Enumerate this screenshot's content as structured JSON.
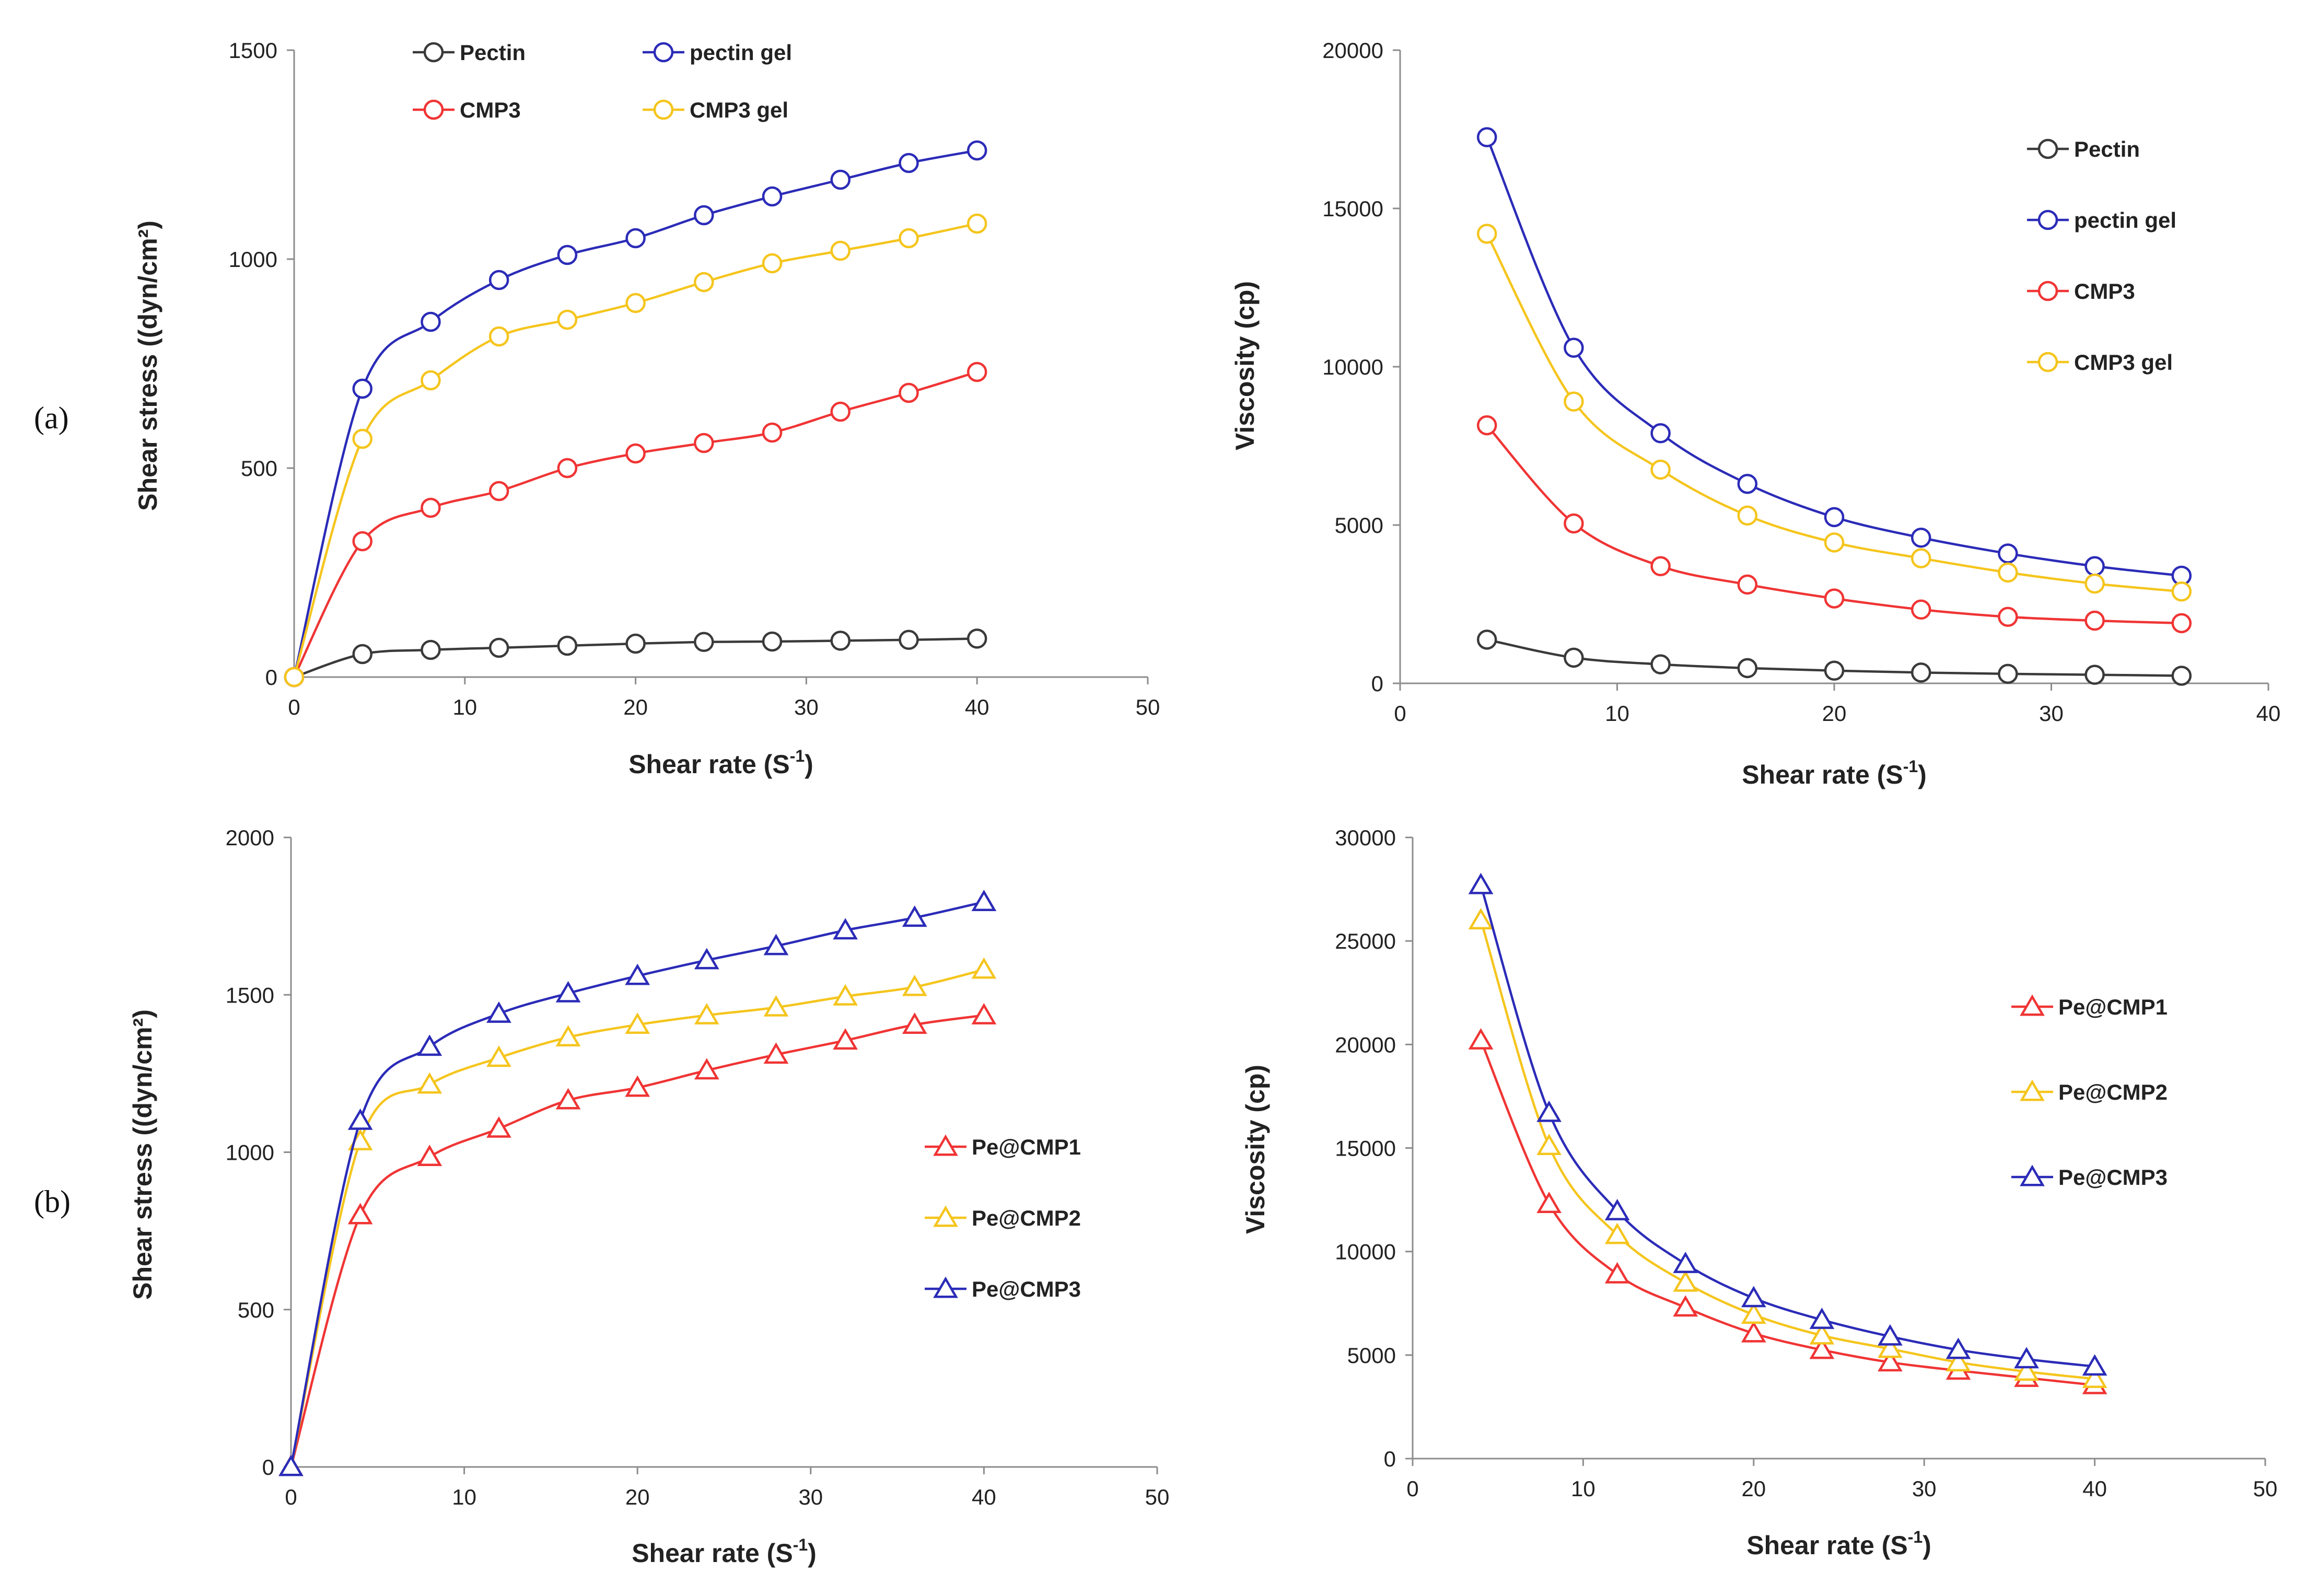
{
  "panel_labels": [
    "(a)",
    "(b)"
  ],
  "colors": {
    "black": "#3a3a3a",
    "blue": "#2b2bb8",
    "red": "#f03434",
    "yellow": "#f5c51d"
  },
  "chart_data": [
    {
      "id": "a-stress",
      "type": "line",
      "marker": "circle",
      "xlabel": "Shear rate (S-1)",
      "ylabel": "Shear stress ((dyn/cm²)",
      "xlim": [
        0,
        50
      ],
      "ylim": [
        0,
        1500
      ],
      "xticks": [
        0,
        10,
        20,
        30,
        40,
        50
      ],
      "yticks": [
        0,
        500,
        1000,
        1500
      ],
      "legend_cols": 2,
      "series": [
        {
          "name": "Pectin",
          "color": "#3a3a3a",
          "x": [
            0,
            4,
            8,
            12,
            16,
            20,
            24,
            28,
            32,
            36,
            40
          ],
          "values": [
            0,
            55,
            65,
            70,
            75,
            80,
            84,
            85,
            87,
            89,
            92
          ]
        },
        {
          "name": "pectin gel",
          "color": "#2b2bb8",
          "x": [
            0,
            4,
            8,
            12,
            16,
            20,
            24,
            28,
            32,
            36,
            40
          ],
          "values": [
            0,
            690,
            850,
            950,
            1010,
            1050,
            1105,
            1150,
            1190,
            1230,
            1260
          ]
        },
        {
          "name": "CMP3",
          "color": "#f03434",
          "x": [
            0,
            4,
            8,
            12,
            16,
            20,
            24,
            28,
            32,
            36,
            40
          ],
          "values": [
            0,
            325,
            405,
            445,
            500,
            535,
            560,
            585,
            635,
            680,
            730
          ]
        },
        {
          "name": "CMP3 gel",
          "color": "#f5c51d",
          "x": [
            0,
            4,
            8,
            12,
            16,
            20,
            24,
            28,
            32,
            36,
            40
          ],
          "values": [
            0,
            570,
            710,
            815,
            855,
            895,
            945,
            990,
            1020,
            1050,
            1085
          ]
        }
      ]
    },
    {
      "id": "a-visc",
      "type": "line",
      "marker": "circle",
      "xlabel": "Shear rate (S-1)",
      "ylabel": "Viscosity (cp)",
      "xlim": [
        0,
        40
      ],
      "ylim": [
        0,
        20000
      ],
      "xticks": [
        0,
        10,
        20,
        30,
        40
      ],
      "yticks": [
        0,
        5000,
        10000,
        15000,
        20000
      ],
      "legend_cols": 1,
      "series": [
        {
          "name": "Pectin",
          "color": "#3a3a3a",
          "x": [
            4,
            8,
            12,
            16,
            20,
            24,
            28,
            32,
            36
          ],
          "values": [
            1380,
            810,
            600,
            480,
            400,
            340,
            300,
            270,
            240
          ]
        },
        {
          "name": "pectin gel",
          "color": "#2b2bb8",
          "x": [
            4,
            8,
            12,
            16,
            20,
            24,
            28,
            32,
            36
          ],
          "values": [
            17250,
            10600,
            7900,
            6300,
            5250,
            4600,
            4100,
            3700,
            3400
          ]
        },
        {
          "name": "CMP3",
          "color": "#f03434",
          "x": [
            4,
            8,
            12,
            16,
            20,
            24,
            28,
            32,
            36
          ],
          "values": [
            8150,
            5050,
            3700,
            3120,
            2680,
            2330,
            2100,
            1980,
            1900
          ]
        },
        {
          "name": "CMP3 gel",
          "color": "#f5c51d",
          "x": [
            4,
            8,
            12,
            16,
            20,
            24,
            28,
            32,
            36
          ],
          "values": [
            14200,
            8900,
            6750,
            5300,
            4450,
            3950,
            3500,
            3150,
            2900
          ]
        }
      ]
    },
    {
      "id": "b-stress",
      "type": "line",
      "marker": "triangle",
      "xlabel": "Shear rate (S-1)",
      "ylabel": "Shear stress ((dyn/cm²)",
      "xlim": [
        0,
        50
      ],
      "ylim": [
        0,
        2000
      ],
      "xticks": [
        0,
        10,
        20,
        30,
        40,
        50
      ],
      "yticks": [
        0,
        500,
        1000,
        1500,
        2000
      ],
      "legend_cols": 1,
      "series": [
        {
          "name": "Pe@CMP1",
          "color": "#f03434",
          "x": [
            0,
            4,
            8,
            12,
            16,
            20,
            24,
            28,
            32,
            36,
            40
          ],
          "values": [
            0,
            800,
            985,
            1075,
            1165,
            1205,
            1260,
            1310,
            1355,
            1405,
            1435
          ]
        },
        {
          "name": "Pe@CMP2",
          "color": "#f5c51d",
          "x": [
            0,
            4,
            8,
            12,
            16,
            20,
            24,
            28,
            32,
            36,
            40
          ],
          "values": [
            0,
            1035,
            1215,
            1300,
            1365,
            1405,
            1435,
            1460,
            1495,
            1525,
            1580
          ]
        },
        {
          "name": "Pe@CMP3",
          "color": "#2b2bb8",
          "x": [
            0,
            4,
            8,
            12,
            16,
            20,
            24,
            28,
            32,
            36,
            40
          ],
          "values": [
            0,
            1100,
            1335,
            1440,
            1505,
            1560,
            1610,
            1655,
            1705,
            1745,
            1795
          ]
        }
      ]
    },
    {
      "id": "b-visc",
      "type": "line",
      "marker": "triangle",
      "xlabel": "Shear rate (S-1)",
      "ylabel": "Viscosity (cp)",
      "xlim": [
        0,
        50
      ],
      "ylim": [
        0,
        30000
      ],
      "xticks": [
        0,
        10,
        20,
        30,
        40,
        50
      ],
      "yticks": [
        0,
        5000,
        10000,
        15000,
        20000,
        25000,
        30000
      ],
      "legend_cols": 1,
      "series": [
        {
          "name": "Pe@CMP1",
          "color": "#f03434",
          "x": [
            4,
            8,
            12,
            16,
            20,
            24,
            28,
            32,
            36,
            40
          ],
          "values": [
            20200,
            12300,
            8900,
            7300,
            6050,
            5250,
            4650,
            4250,
            3900,
            3550
          ]
        },
        {
          "name": "Pe@CMP2",
          "color": "#f5c51d",
          "x": [
            4,
            8,
            12,
            16,
            20,
            24,
            28,
            32,
            36,
            40
          ],
          "values": [
            26000,
            15100,
            10800,
            8500,
            6950,
            5950,
            5300,
            4650,
            4200,
            3850
          ]
        },
        {
          "name": "Pe@CMP3",
          "color": "#2b2bb8",
          "x": [
            4,
            8,
            12,
            16,
            20,
            24,
            28,
            32,
            36,
            40
          ],
          "values": [
            27700,
            16700,
            11950,
            9400,
            7750,
            6700,
            5900,
            5250,
            4800,
            4450
          ]
        }
      ]
    }
  ]
}
